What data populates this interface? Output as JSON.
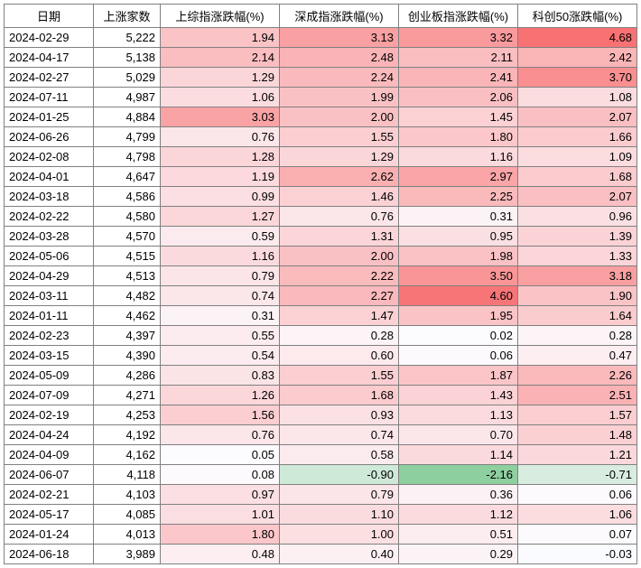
{
  "headers": [
    "日期",
    "上涨家数",
    "上综指涨跌幅(%)",
    "深成指涨跌幅(%)",
    "创业板指涨跌幅(%)",
    "科创50涨跌幅(%)"
  ],
  "min_val": -3.0,
  "max_val": 5.0,
  "neg_color": "#63be7b",
  "zero_color": "#fcfcff",
  "pos_color": "#f8696b",
  "rows": [
    {
      "date": "2024-02-29",
      "count": "5,222",
      "v": [
        1.94,
        3.13,
        3.32,
        4.68
      ]
    },
    {
      "date": "2024-04-17",
      "count": "5,138",
      "v": [
        2.14,
        2.48,
        2.11,
        2.42
      ]
    },
    {
      "date": "2024-02-27",
      "count": "5,029",
      "v": [
        1.29,
        2.24,
        2.41,
        3.7
      ]
    },
    {
      "date": "2024-07-11",
      "count": "4,987",
      "v": [
        1.06,
        1.99,
        2.06,
        1.08
      ]
    },
    {
      "date": "2024-01-25",
      "count": "4,884",
      "v": [
        3.03,
        2.0,
        1.45,
        2.07
      ]
    },
    {
      "date": "2024-06-26",
      "count": "4,799",
      "v": [
        0.76,
        1.55,
        1.8,
        1.66
      ]
    },
    {
      "date": "2024-02-08",
      "count": "4,798",
      "v": [
        1.28,
        1.29,
        1.16,
        1.09
      ]
    },
    {
      "date": "2024-04-01",
      "count": "4,647",
      "v": [
        1.19,
        2.62,
        2.97,
        1.68
      ]
    },
    {
      "date": "2024-03-18",
      "count": "4,586",
      "v": [
        0.99,
        1.46,
        2.25,
        2.07
      ]
    },
    {
      "date": "2024-02-22",
      "count": "4,580",
      "v": [
        1.27,
        0.76,
        0.31,
        0.96
      ]
    },
    {
      "date": "2024-03-28",
      "count": "4,570",
      "v": [
        0.59,
        1.31,
        0.95,
        1.39
      ]
    },
    {
      "date": "2024-05-06",
      "count": "4,515",
      "v": [
        1.16,
        2.0,
        1.98,
        1.33
      ]
    },
    {
      "date": "2024-04-29",
      "count": "4,513",
      "v": [
        0.79,
        2.22,
        3.5,
        3.18
      ]
    },
    {
      "date": "2024-03-11",
      "count": "4,482",
      "v": [
        0.74,
        2.27,
        4.6,
        1.9
      ]
    },
    {
      "date": "2024-01-11",
      "count": "4,462",
      "v": [
        0.31,
        1.47,
        1.95,
        1.64
      ]
    },
    {
      "date": "2024-02-23",
      "count": "4,397",
      "v": [
        0.55,
        0.28,
        0.02,
        0.28
      ]
    },
    {
      "date": "2024-03-15",
      "count": "4,390",
      "v": [
        0.54,
        0.6,
        0.06,
        0.47
      ]
    },
    {
      "date": "2024-05-09",
      "count": "4,286",
      "v": [
        0.83,
        1.55,
        1.87,
        2.26
      ]
    },
    {
      "date": "2024-07-09",
      "count": "4,271",
      "v": [
        1.26,
        1.68,
        1.43,
        2.51
      ]
    },
    {
      "date": "2024-02-19",
      "count": "4,253",
      "v": [
        1.56,
        0.93,
        1.13,
        1.57
      ]
    },
    {
      "date": "2024-04-24",
      "count": "4,192",
      "v": [
        0.76,
        0.74,
        0.7,
        1.48
      ]
    },
    {
      "date": "2024-04-09",
      "count": "4,162",
      "v": [
        0.05,
        0.58,
        1.14,
        1.21
      ]
    },
    {
      "date": "2024-06-07",
      "count": "4,118",
      "v": [
        0.08,
        -0.9,
        -2.16,
        -0.71
      ]
    },
    {
      "date": "2024-02-21",
      "count": "4,103",
      "v": [
        0.97,
        0.79,
        0.36,
        0.06
      ]
    },
    {
      "date": "2024-05-17",
      "count": "4,085",
      "v": [
        1.01,
        1.1,
        1.12,
        1.06
      ]
    },
    {
      "date": "2024-01-24",
      "count": "4,013",
      "v": [
        1.8,
        1.0,
        0.51,
        0.07
      ]
    },
    {
      "date": "2024-06-18",
      "count": "3,989",
      "v": [
        0.48,
        0.4,
        0.29,
        -0.03
      ]
    }
  ]
}
